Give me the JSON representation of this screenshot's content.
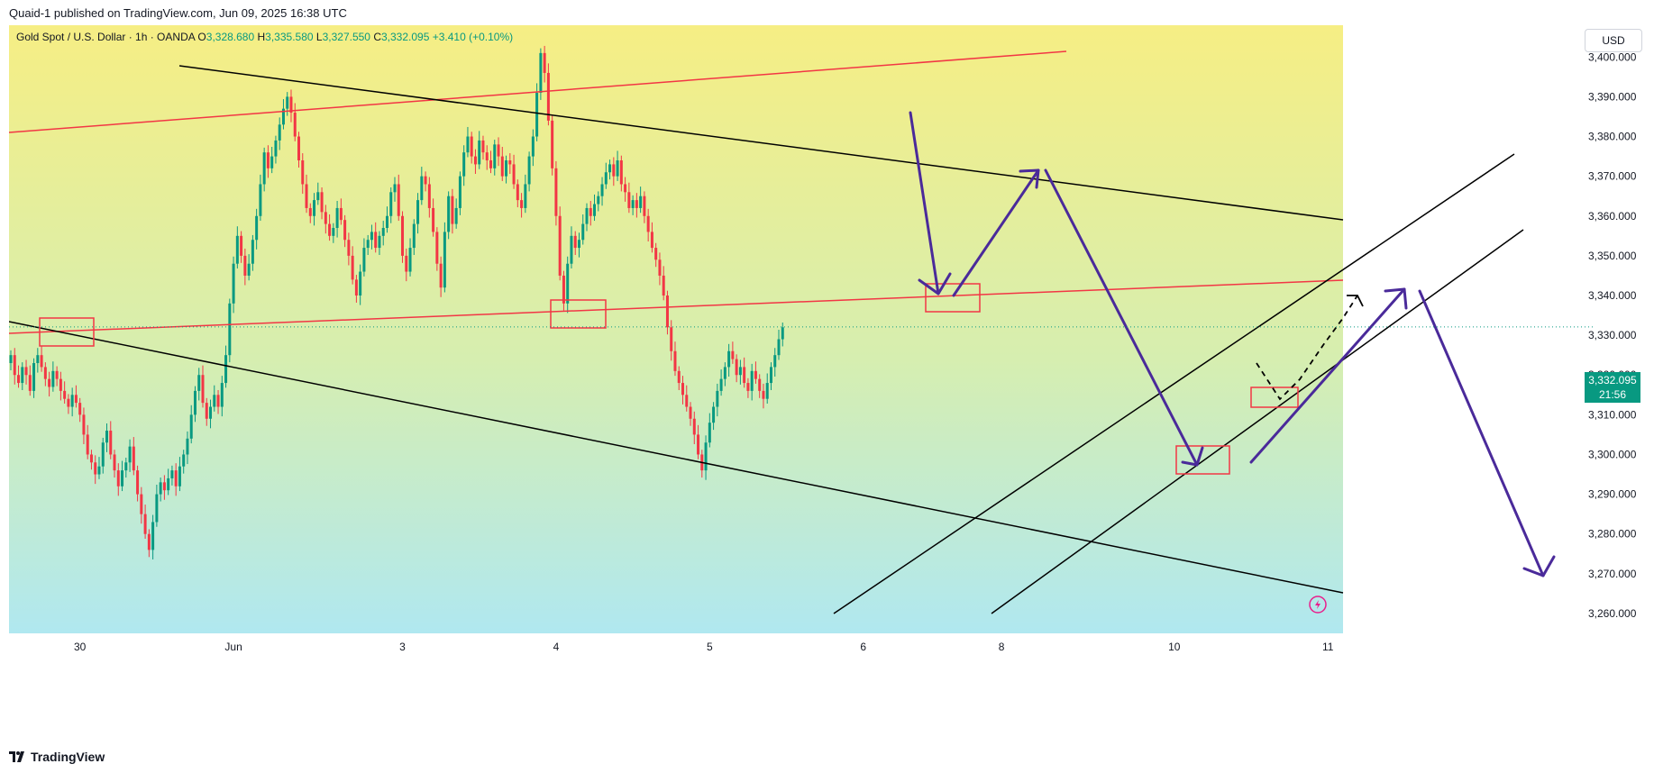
{
  "header": {
    "text": "Quaid-1 published on TradingView.com, Jun 09, 2025 16:38 UTC"
  },
  "legend": {
    "symbol": "Gold Spot / U.S. Dollar · 1h · OANDA",
    "o_label": "O",
    "o": "3,328.680",
    "h_label": "H",
    "h": "3,335.580",
    "l_label": "L",
    "l": "3,327.550",
    "c_label": "C",
    "c": "3,332.095",
    "change": "+3.410 (+0.10%)"
  },
  "currency_button": "USD",
  "last_price": {
    "value": "3,332.095",
    "countdown": "21:56"
  },
  "footer": {
    "brand": "TradingView"
  },
  "colors": {
    "up": "#089981",
    "down": "#f23645",
    "resistance": "#f23645",
    "trend": "#000000",
    "arrow": "#4a2a9a",
    "bg_top": "#f6ee84",
    "bg_bottom": "#b0e8f0"
  },
  "chart_data": {
    "type": "candlestick",
    "title": "Gold Spot / U.S. Dollar · 1h · OANDA",
    "ylim": [
      3255,
      3408
    ],
    "y_ticks": [
      3260,
      3270,
      3280,
      3290,
      3300,
      3310,
      3320,
      3330,
      3340,
      3350,
      3360,
      3370,
      3380,
      3390,
      3400
    ],
    "y_tick_labels": [
      "3,260.000",
      "3,270.000",
      "3,280.000",
      "3,290.000",
      "3,300.000",
      "3,310.000",
      "3,320.000",
      "3,330.000",
      "3,340.000",
      "3,350.000",
      "3,360.000",
      "3,370.000",
      "3,380.000",
      "3,390.000",
      "3,400.000"
    ],
    "x_ticks": [
      {
        "label": "30",
        "bar": 18
      },
      {
        "label": "Jun",
        "bar": 58
      },
      {
        "label": "3",
        "bar": 102
      },
      {
        "label": "4",
        "bar": 142
      },
      {
        "label": "5",
        "bar": 182
      },
      {
        "label": "6",
        "bar": 222
      },
      {
        "label": "8",
        "bar": 258
      },
      {
        "label": "10",
        "bar": 303
      },
      {
        "label": "11",
        "bar": 343
      }
    ],
    "closes": [
      3325,
      3320,
      3318,
      3322,
      3320,
      3316,
      3323,
      3325,
      3322,
      3319,
      3317,
      3321,
      3319,
      3316,
      3314,
      3312,
      3315,
      3313,
      3310,
      3305,
      3300,
      3298,
      3295,
      3297,
      3303,
      3306,
      3300,
      3296,
      3292,
      3296,
      3298,
      3302,
      3296,
      3290,
      3285,
      3280,
      3276,
      3283,
      3290,
      3293,
      3291,
      3294,
      3296,
      3292,
      3297,
      3300,
      3304,
      3310,
      3316,
      3320,
      3313,
      3309,
      3312,
      3315,
      3312,
      3318,
      3325,
      3338,
      3348,
      3355,
      3350,
      3345,
      3348,
      3354,
      3360,
      3368,
      3376,
      3372,
      3375,
      3379,
      3383,
      3387,
      3390,
      3386,
      3380,
      3374,
      3368,
      3362,
      3360,
      3364,
      3366,
      3361,
      3358,
      3355,
      3357,
      3362,
      3359,
      3354,
      3350,
      3344,
      3340,
      3346,
      3352,
      3354,
      3356,
      3352,
      3355,
      3357,
      3360,
      3366,
      3368,
      3360,
      3350,
      3346,
      3352,
      3358,
      3364,
      3370,
      3368,
      3362,
      3356,
      3348,
      3342,
      3356,
      3365,
      3358,
      3362,
      3370,
      3376,
      3380,
      3375,
      3373,
      3379,
      3376,
      3374,
      3372,
      3378,
      3375,
      3370,
      3374,
      3373,
      3368,
      3364,
      3362,
      3368,
      3375,
      3380,
      3391,
      3401,
      3396,
      3384,
      3372,
      3360,
      3345,
      3338,
      3348,
      3355,
      3352,
      3354,
      3358,
      3362,
      3360,
      3363,
      3365,
      3368,
      3371,
      3373,
      3370,
      3374,
      3368,
      3366,
      3362,
      3364,
      3362,
      3365,
      3360,
      3356,
      3352,
      3349,
      3345,
      3340,
      3332,
      3326,
      3321,
      3318,
      3315,
      3312,
      3309,
      3305,
      3300,
      3296,
      3303,
      3308,
      3312,
      3316,
      3319,
      3322,
      3326,
      3324,
      3320,
      3322,
      3318,
      3316,
      3321,
      3319,
      3316,
      3314,
      3318,
      3322,
      3325,
      3329,
      3332
    ]
  }
}
